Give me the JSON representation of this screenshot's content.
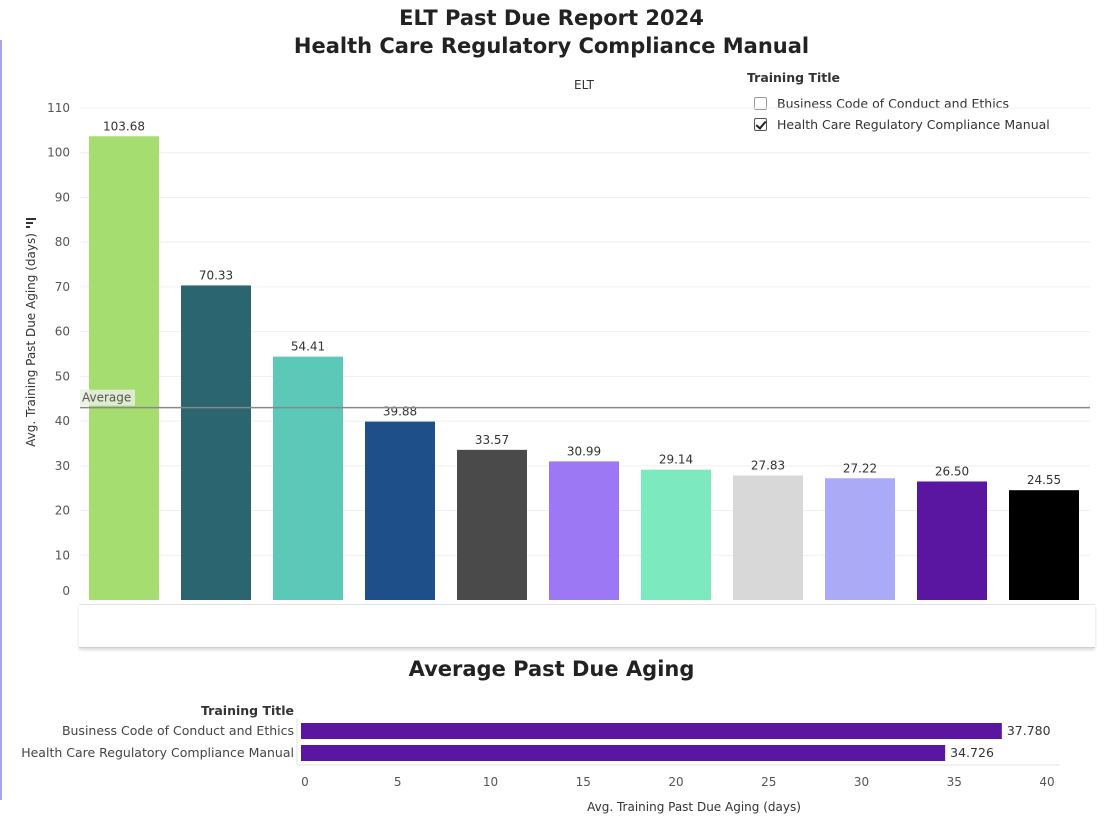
{
  "title_line1": "ELT Past Due Report 2024",
  "title_line2": "Health Care Regulatory Compliance Manual",
  "column_header": "ELT",
  "legend": {
    "title": "Training Title",
    "items": [
      {
        "label": "Business Code of Conduct and Ethics",
        "checked": false
      },
      {
        "label": "Health Care Regulatory Compliance Manual",
        "checked": true
      }
    ]
  },
  "icons": {
    "filter": "sort-filter-icon"
  },
  "chart_data": [
    {
      "type": "bar",
      "ylabel": "Avg. Training Past Due Aging (days)",
      "ylim": [
        0,
        110
      ],
      "yticks": [
        0,
        10,
        20,
        30,
        40,
        50,
        60,
        70,
        80,
        90,
        100,
        110
      ],
      "grid": true,
      "values": [
        103.68,
        70.33,
        54.41,
        39.88,
        33.57,
        30.99,
        29.14,
        27.83,
        27.22,
        26.5,
        24.55
      ],
      "value_labels": [
        "103.68",
        "70.33",
        "54.41",
        "39.88",
        "33.57",
        "30.99",
        "29.14",
        "27.83",
        "27.22",
        "26.50",
        "24.55"
      ],
      "colors": [
        "#a6dd70",
        "#2b6570",
        "#5bc8b8",
        "#1f4f88",
        "#4a4a4a",
        "#9c78f4",
        "#7ceabe",
        "#d8d8d8",
        "#aaaaf6",
        "#5a16a0",
        "#000000"
      ],
      "reference_line": {
        "label": "Average",
        "value": 43
      }
    },
    {
      "type": "bar",
      "orientation": "horizontal",
      "title": "Average Past Due Aging",
      "category_header": "Training Title",
      "categories": [
        "Business Code of Conduct and Ethics",
        "Health Care Regulatory Compliance Manual"
      ],
      "values": [
        37.78,
        34.726
      ],
      "value_labels": [
        "37.780",
        "34.726"
      ],
      "xlabel": "Avg. Training Past Due Aging (days)",
      "xlim": [
        0,
        40
      ],
      "xticks": [
        0,
        5,
        10,
        15,
        20,
        25,
        30,
        35,
        40
      ],
      "color": "#5a16a0"
    }
  ]
}
